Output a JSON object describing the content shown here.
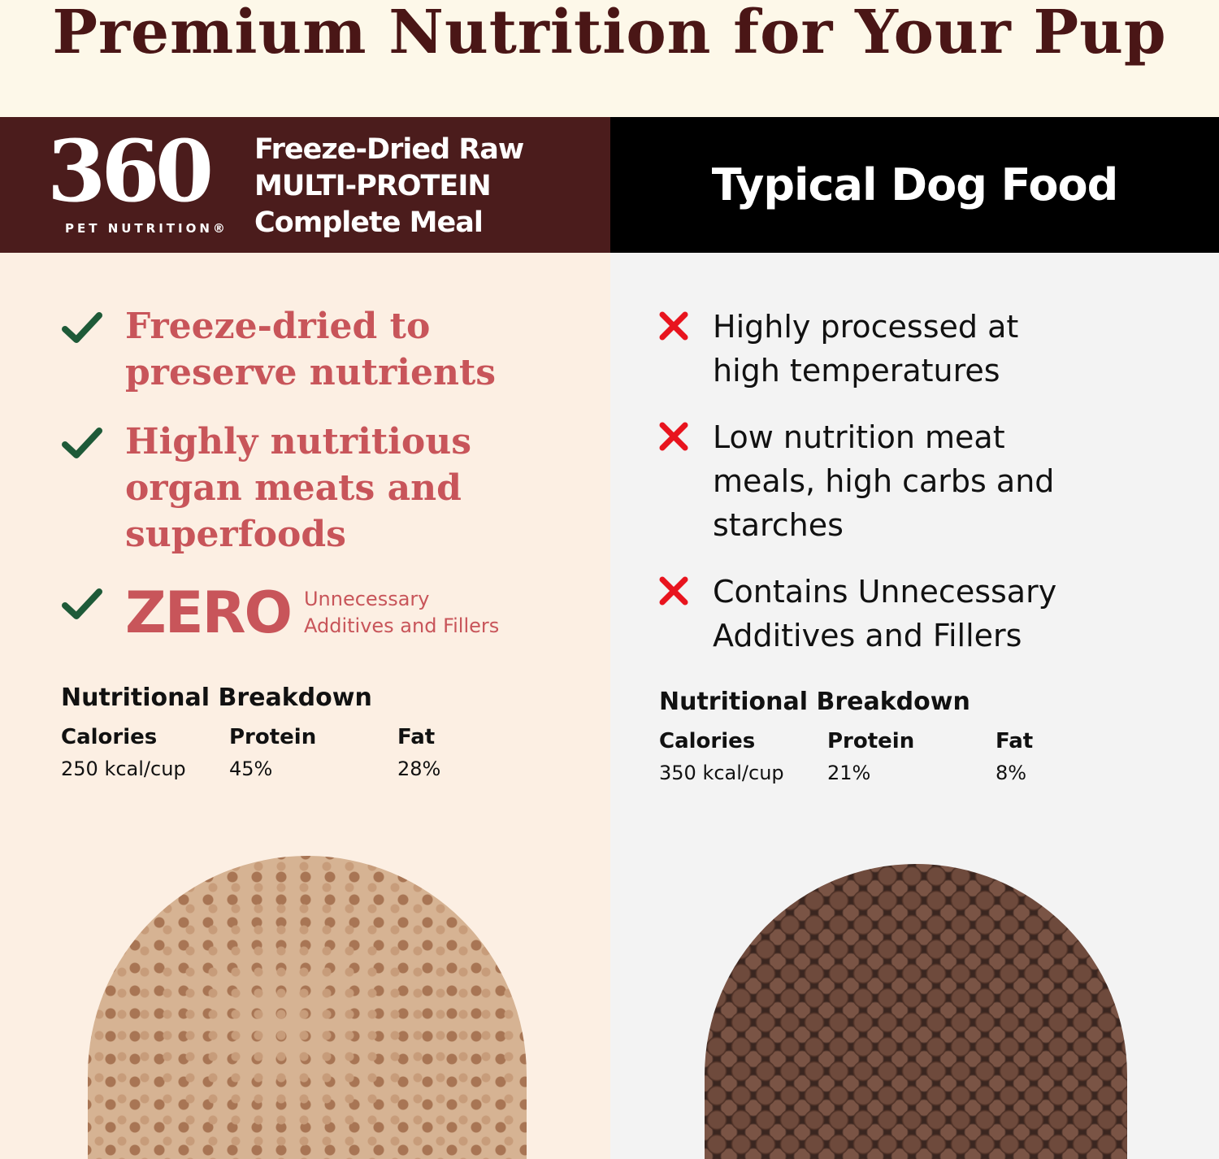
{
  "title": "Premium Nutrition for Your Pup",
  "left": {
    "brand": {
      "logo": "360",
      "sub": "PET NUTRITION®"
    },
    "product_lines": [
      "Freeze-Dried Raw",
      "MULTI-PROTEIN",
      "Complete Meal"
    ],
    "benefits": [
      {
        "icon": "check-icon",
        "text": "Freeze-dried to preserve nutrients"
      },
      {
        "icon": "check-icon",
        "text": "Highly nutritious organ meats and superfoods"
      }
    ],
    "zero": {
      "big": "ZERO",
      "line1": "Unnecessary",
      "line2": "Additives and Fillers"
    },
    "breakdown": {
      "title": "Nutritional Breakdown",
      "cols": [
        {
          "label": "Calories",
          "value": "250 kcal/cup"
        },
        {
          "label": "Protein",
          "value": "45%"
        },
        {
          "label": "Fat",
          "value": "28%"
        }
      ]
    }
  },
  "right": {
    "header": "Typical Dog Food",
    "drawbacks": [
      {
        "icon": "x-icon",
        "text": "Highly processed at high temperatures"
      },
      {
        "icon": "x-icon",
        "text": "Low nutrition meat meals, high carbs and starches"
      },
      {
        "icon": "x-icon",
        "text": "Contains Unnecessary Additives and Fillers"
      }
    ],
    "breakdown": {
      "title": "Nutritional Breakdown",
      "cols": [
        {
          "label": "Calories",
          "value": "350 kcal/cup"
        },
        {
          "label": "Protein",
          "value": "21%"
        },
        {
          "label": "Fat",
          "value": "8%"
        }
      ]
    }
  },
  "colors": {
    "brand": "#4b1c1c",
    "accent": "#c8555a",
    "check": "#1e5a38",
    "cross": "#e8141e",
    "left_bg": "#fcefe3",
    "right_bg": "#f3f3f3"
  }
}
